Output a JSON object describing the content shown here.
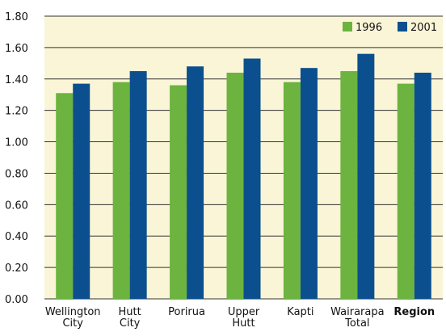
{
  "chart_data": {
    "type": "bar",
    "categories": [
      "Wellington City",
      "Hutt City",
      "Porirua",
      "Upper Hutt",
      "Kapti",
      "Wairarapa Total",
      "Region"
    ],
    "series": [
      {
        "name": "1996",
        "color": "#6cb33f",
        "values": [
          1.31,
          1.38,
          1.36,
          1.44,
          1.38,
          1.45,
          1.37
        ]
      },
      {
        "name": "2001",
        "color": "#0b4f8f",
        "values": [
          1.37,
          1.45,
          1.48,
          1.53,
          1.47,
          1.56,
          1.44
        ]
      }
    ],
    "ylim": [
      0,
      1.8
    ],
    "yticks": [
      {
        "value": 0,
        "label": "0.00"
      },
      {
        "value": 0.2,
        "label": "0.20"
      },
      {
        "value": 0.4,
        "label": "0.40"
      },
      {
        "value": 0.6,
        "label": "0.60"
      },
      {
        "value": 0.8,
        "label": "0.80"
      },
      {
        "value": 1.0,
        "label": "1.00"
      },
      {
        "value": 1.2,
        "label": "1.20"
      },
      {
        "value": 1.4,
        "label": "1.40"
      },
      {
        "value": 1.6,
        "label": "1.60"
      },
      {
        "value": 1.8,
        "label": "1.80"
      }
    ],
    "grid": true,
    "legend": "top-right"
  }
}
